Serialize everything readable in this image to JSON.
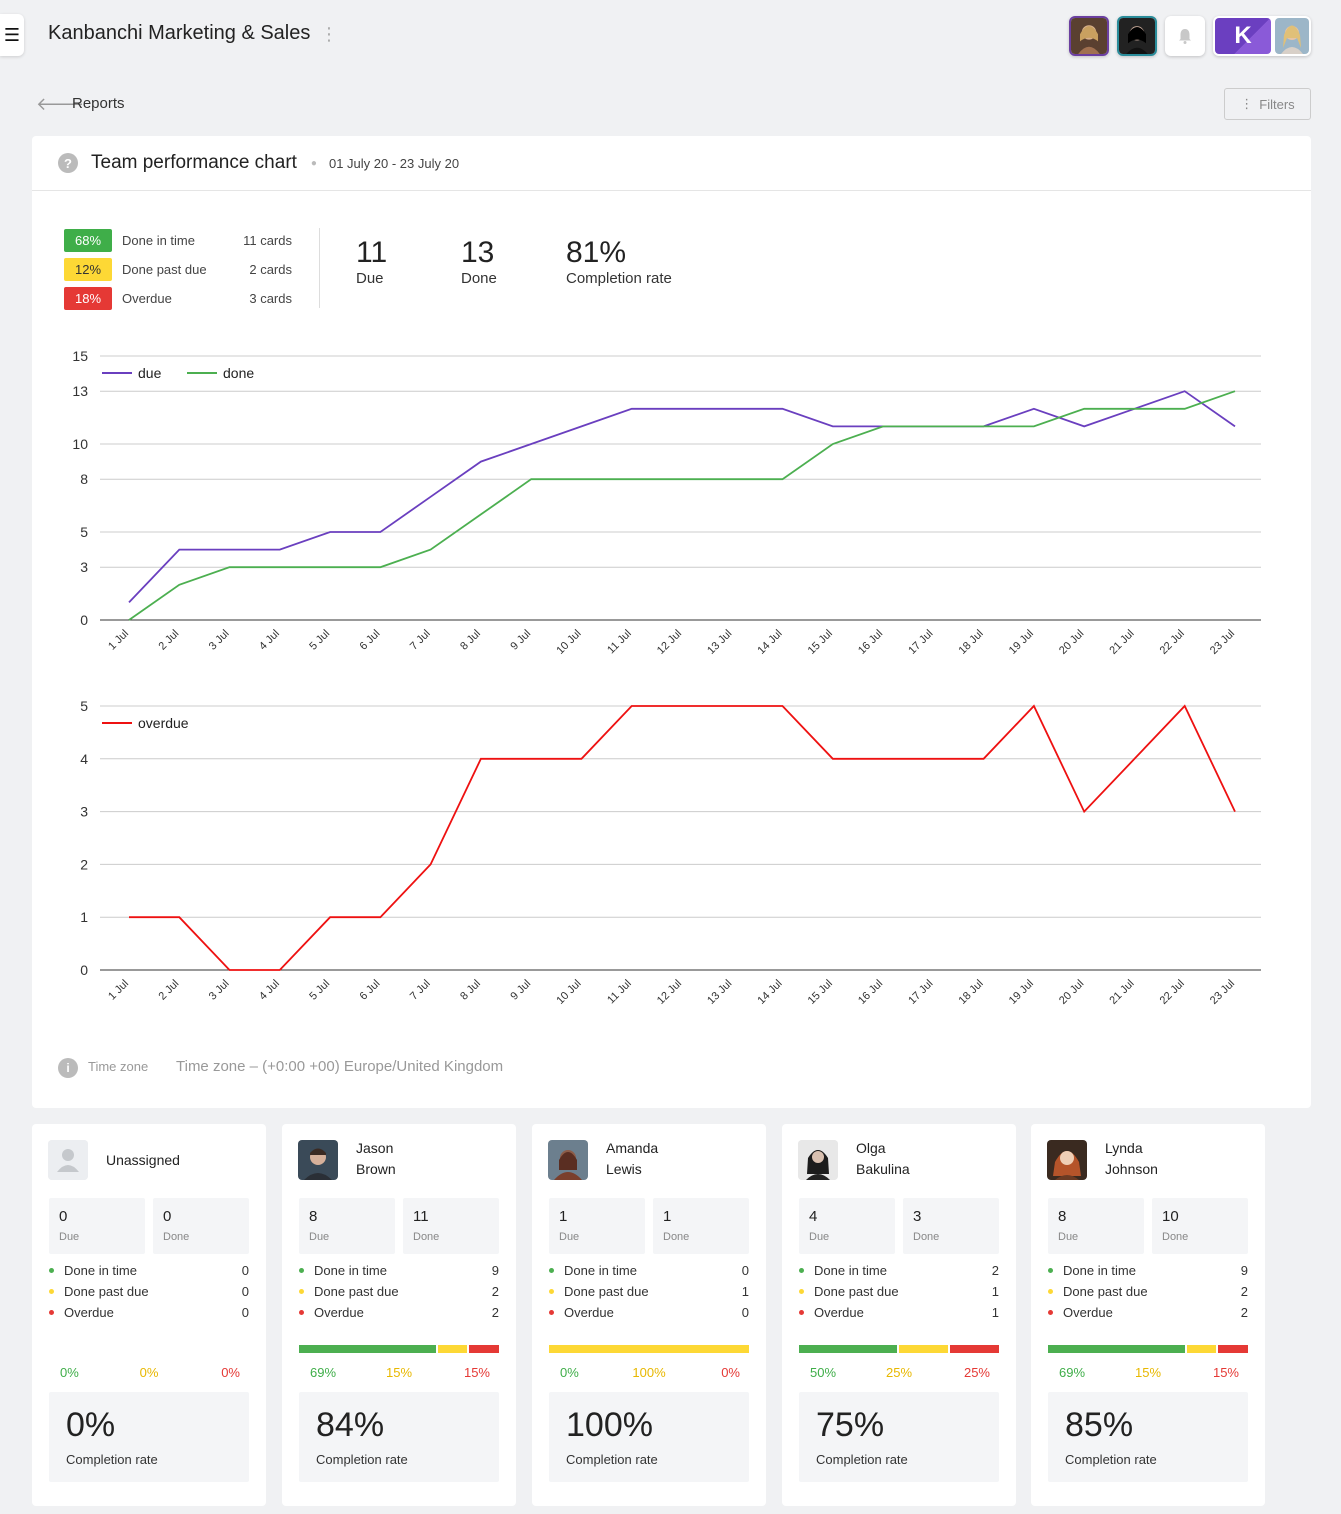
{
  "header": {
    "menu_icon": "hamburger-icon",
    "title": "Kanbanchi Marketing & Sales",
    "logo_letter": "K"
  },
  "toolbar": {
    "back_icon": "arrow-left-icon",
    "breadcrumb": "Reports",
    "filters_label": "Filters"
  },
  "report": {
    "title": "Team performance chart",
    "date_range": "01 July 20 - 23 July 20",
    "breakdown": [
      {
        "pct": "68%",
        "label": "Done in time",
        "cards": "11 cards",
        "color": "#3fae49"
      },
      {
        "pct": "12%",
        "label": "Done past due",
        "cards": "2 cards",
        "color": "#fdd835"
      },
      {
        "pct": "18%",
        "label": "Overdue",
        "cards": "3 cards",
        "color": "#e53935"
      }
    ],
    "stats": [
      {
        "value": "11",
        "label": "Due"
      },
      {
        "value": "13",
        "label": "Done"
      },
      {
        "value": "81%",
        "label": "Completion rate"
      }
    ],
    "timezone_label": "Time zone",
    "timezone_value": "Time zone – (+0:00 +00) Europe/United Kingdom"
  },
  "chart_data": [
    {
      "type": "line",
      "categories": [
        "1 Jul",
        "2 Jul",
        "3 Jul",
        "4 Jul",
        "5 Jul",
        "6 Jul",
        "7 Jul",
        "8 Jul",
        "9 Jul",
        "10 Jul",
        "11 Jul",
        "12 Jul",
        "13 Jul",
        "14 Jul",
        "15 Jul",
        "16 Jul",
        "17 Jul",
        "18 Jul",
        "19 Jul",
        "20 Jul",
        "21 Jul",
        "22 Jul",
        "23 Jul"
      ],
      "yticks": [
        "0",
        "3",
        "5",
        "8",
        "10",
        "13",
        "15"
      ],
      "ylim": [
        0,
        15
      ],
      "legend": "top-left",
      "grid": true,
      "series": [
        {
          "name": "due",
          "color": "#6a3fbf",
          "values": [
            1,
            4,
            4,
            4,
            5,
            5,
            7,
            9,
            10,
            11,
            12,
            12,
            12,
            12,
            11,
            11,
            11,
            11,
            12,
            11,
            12,
            13,
            11
          ]
        },
        {
          "name": "done",
          "color": "#4caf50",
          "values": [
            0,
            2,
            3,
            3,
            3,
            3,
            4,
            6,
            8,
            8,
            8,
            8,
            8,
            8,
            10,
            11,
            11,
            11,
            11,
            12,
            12,
            12,
            13
          ]
        }
      ]
    },
    {
      "type": "line",
      "categories": [
        "1 Jul",
        "2 Jul",
        "3 Jul",
        "4 Jul",
        "5 Jul",
        "6 Jul",
        "7 Jul",
        "8 Jul",
        "9 Jul",
        "10 Jul",
        "11 Jul",
        "12 Jul",
        "13 Jul",
        "14 Jul",
        "15 Jul",
        "16 Jul",
        "17 Jul",
        "18 Jul",
        "19 Jul",
        "20 Jul",
        "21 Jul",
        "22 Jul",
        "23 Jul"
      ],
      "yticks": [
        "0",
        "1",
        "2",
        "3",
        "4",
        "5"
      ],
      "ylim": [
        0,
        5
      ],
      "legend": "top-left",
      "grid": true,
      "series": [
        {
          "name": "overdue",
          "color": "#ee1111",
          "values": [
            1,
            1,
            0,
            0,
            1,
            1,
            2,
            4,
            4,
            4,
            5,
            5,
            5,
            5,
            4,
            4,
            4,
            4,
            5,
            3,
            4,
            5,
            3
          ]
        }
      ]
    }
  ],
  "members": [
    {
      "name1": "Unassigned",
      "name2": "",
      "avatar": "person-placeholder-icon",
      "due": "0",
      "done": "0",
      "in_time": "0",
      "past_due": "0",
      "overdue": "0",
      "p_in": "0%",
      "p_past": "0%",
      "p_over": "0%",
      "bar": [
        0,
        0,
        0
      ],
      "rate": "0%"
    },
    {
      "name1": "Jason",
      "name2": "Brown",
      "avatar": "user-avatar",
      "due": "8",
      "done": "11",
      "in_time": "9",
      "past_due": "2",
      "overdue": "2",
      "p_in": "69%",
      "p_past": "15%",
      "p_over": "15%",
      "bar": [
        69,
        15,
        15
      ],
      "rate": "84%"
    },
    {
      "name1": "Amanda",
      "name2": "Lewis",
      "avatar": "user-avatar",
      "due": "1",
      "done": "1",
      "in_time": "0",
      "past_due": "1",
      "overdue": "0",
      "p_in": "0%",
      "p_past": "100%",
      "p_over": "0%",
      "bar": [
        0,
        100,
        0
      ],
      "rate": "100%"
    },
    {
      "name1": "Olga",
      "name2": "Bakulina",
      "avatar": "user-avatar",
      "due": "4",
      "done": "3",
      "in_time": "2",
      "past_due": "1",
      "overdue": "1",
      "p_in": "50%",
      "p_past": "25%",
      "p_over": "25%",
      "bar": [
        50,
        25,
        25
      ],
      "rate": "75%"
    },
    {
      "name1": "Lynda",
      "name2": "Johnson",
      "avatar": "user-avatar",
      "due": "8",
      "done": "10",
      "in_time": "9",
      "past_due": "2",
      "overdue": "2",
      "p_in": "69%",
      "p_past": "15%",
      "p_over": "15%",
      "bar": [
        69,
        15,
        15
      ],
      "rate": "85%"
    }
  ],
  "member_labels": {
    "due": "Due",
    "done": "Done",
    "in_time": "Done in time",
    "past_due": "Done past due",
    "overdue": "Overdue",
    "rate": "Completion rate"
  },
  "colors": {
    "green": "#4caf50",
    "yellow": "#fdd835",
    "red": "#e53935",
    "pct_green": "#3fae49",
    "pct_yellow": "#e8b800",
    "pct_red": "#e53935"
  }
}
